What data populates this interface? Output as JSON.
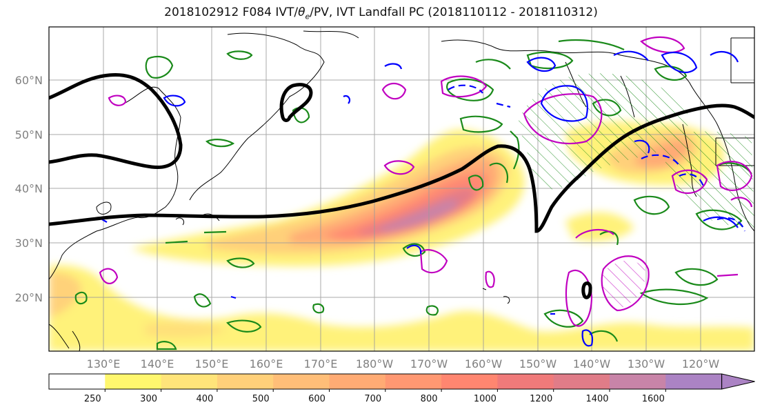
{
  "title_pre": "2018102912 F084 IVT/",
  "title_theta": "θ",
  "title_sub": "e",
  "title_post": "/PV, IVT Landfall PC (2018110112 - 2018110312)",
  "latitudes": [
    "60°N",
    "50°N",
    "40°N",
    "30°N",
    "20°N"
  ],
  "longitudes": [
    "130°E",
    "140°E",
    "150°E",
    "160°E",
    "170°E",
    "180°W",
    "170°W",
    "160°W",
    "150°W",
    "140°W",
    "130°W",
    "120°W"
  ],
  "colorbar": {
    "ticks": [
      "250",
      "300",
      "400",
      "500",
      "600",
      "700",
      "800",
      "1000",
      "1200",
      "1400",
      "1600"
    ],
    "colors": [
      "#ffffff",
      "#fff76e",
      "#ffe47a",
      "#ffd07a",
      "#ffbe78",
      "#ffab74",
      "#ff9872",
      "#ff8670",
      "#f07a7a",
      "#e07c88",
      "#c884a8",
      "#ab83c4"
    ]
  },
  "legend_colors": {
    "pv_positive": "#1a8a1a",
    "theta_e": "#c000c0",
    "pv_negative": "#0000ff",
    "ivt_landfall": "#000000"
  }
}
